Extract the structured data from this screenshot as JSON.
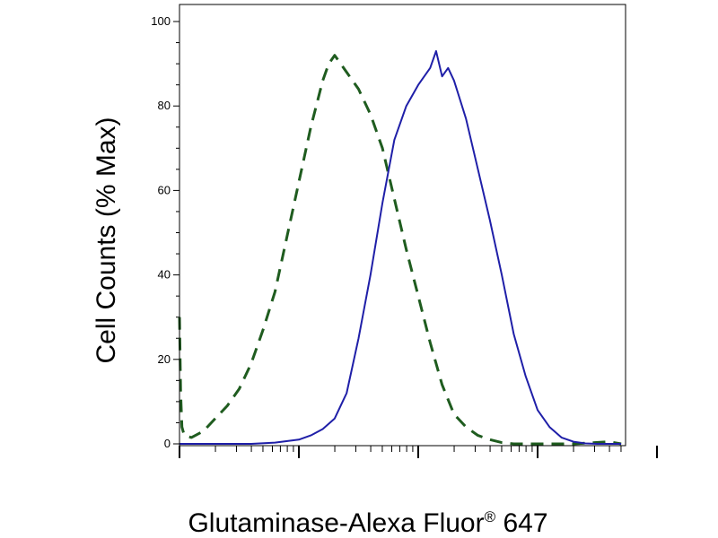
{
  "chart_data": {
    "type": "line",
    "title": "",
    "xlabel": "Glutaminase-Alexa Fluor",
    "xlabel_superscript": "®",
    "xlabel_suffix": " 647",
    "ylabel": "Cell Counts (% Max)",
    "x_scale": "log",
    "x_decades": 4,
    "ylim": [
      0,
      100
    ],
    "y_ticks": [
      0,
      20,
      40,
      60,
      80,
      100
    ],
    "y_tick_labels": [
      "0",
      "20",
      "40",
      "60",
      "80",
      "100"
    ],
    "grid": false,
    "legend": "none",
    "series": [
      {
        "style": "dashed",
        "color": "#1f5c1f",
        "points": [
          [
            0.0,
            30
          ],
          [
            0.01,
            12
          ],
          [
            0.02,
            4
          ],
          [
            0.04,
            2
          ],
          [
            0.1,
            1.5
          ],
          [
            0.2,
            3
          ],
          [
            0.3,
            6
          ],
          [
            0.4,
            9
          ],
          [
            0.5,
            13
          ],
          [
            0.6,
            19
          ],
          [
            0.7,
            27
          ],
          [
            0.8,
            36
          ],
          [
            0.9,
            49
          ],
          [
            1.0,
            62
          ],
          [
            1.1,
            75
          ],
          [
            1.2,
            86
          ],
          [
            1.25,
            90
          ],
          [
            1.3,
            92
          ],
          [
            1.35,
            90
          ],
          [
            1.4,
            88
          ],
          [
            1.5,
            84
          ],
          [
            1.6,
            78
          ],
          [
            1.7,
            70
          ],
          [
            1.8,
            58
          ],
          [
            1.9,
            46
          ],
          [
            2.0,
            35
          ],
          [
            2.1,
            24
          ],
          [
            2.2,
            14
          ],
          [
            2.3,
            7
          ],
          [
            2.4,
            4
          ],
          [
            2.5,
            2
          ],
          [
            2.6,
            1
          ],
          [
            2.7,
            0.3
          ],
          [
            2.8,
            0
          ],
          [
            3.3,
            0
          ],
          [
            3.6,
            0.5
          ],
          [
            3.7,
            0
          ]
        ]
      },
      {
        "style": "solid",
        "color": "#1f1fa8",
        "points": [
          [
            0.0,
            0
          ],
          [
            0.4,
            0
          ],
          [
            0.6,
            0
          ],
          [
            0.8,
            0.3
          ],
          [
            1.0,
            1
          ],
          [
            1.1,
            2
          ],
          [
            1.2,
            3.5
          ],
          [
            1.3,
            6
          ],
          [
            1.4,
            12
          ],
          [
            1.5,
            25
          ],
          [
            1.6,
            40
          ],
          [
            1.7,
            57
          ],
          [
            1.8,
            72
          ],
          [
            1.9,
            80
          ],
          [
            2.0,
            85
          ],
          [
            2.1,
            89
          ],
          [
            2.15,
            93
          ],
          [
            2.2,
            87
          ],
          [
            2.25,
            89
          ],
          [
            2.3,
            86
          ],
          [
            2.4,
            77
          ],
          [
            2.5,
            65
          ],
          [
            2.6,
            53
          ],
          [
            2.7,
            40
          ],
          [
            2.8,
            26
          ],
          [
            2.9,
            16
          ],
          [
            3.0,
            8
          ],
          [
            3.1,
            4
          ],
          [
            3.2,
            1.5
          ],
          [
            3.3,
            0.5
          ],
          [
            3.4,
            0.1
          ],
          [
            3.5,
            0
          ],
          [
            3.7,
            0
          ]
        ]
      }
    ]
  }
}
